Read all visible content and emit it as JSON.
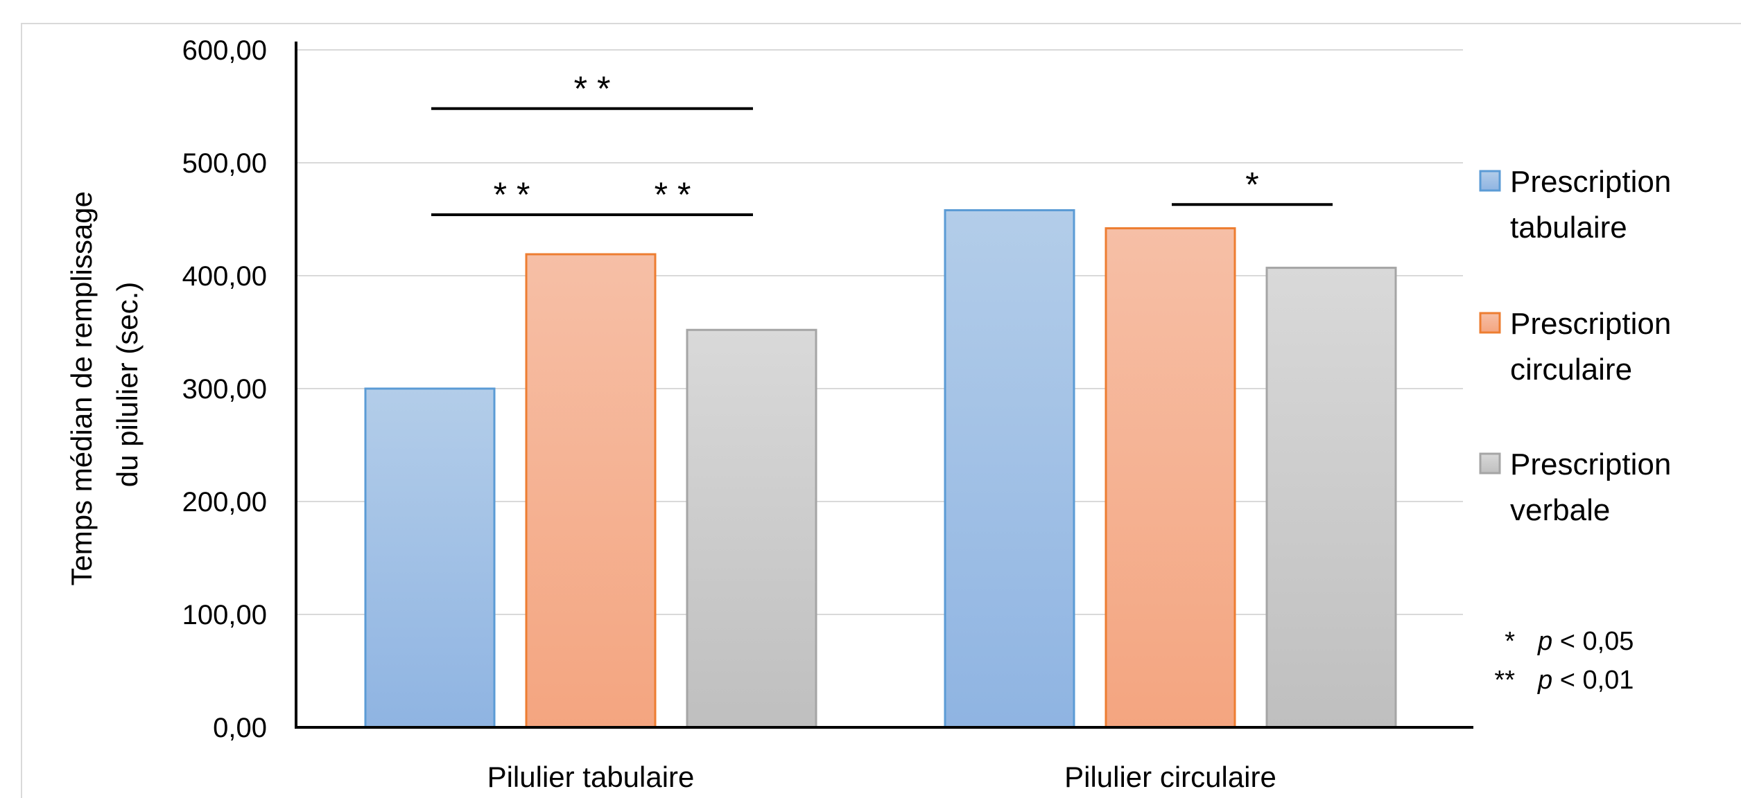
{
  "chart_data": {
    "type": "bar",
    "title": "",
    "ylabel": "Temps médian de remplissage du pilulier  (sec.)",
    "ylabel_lines": [
      "Temps médian de remplissage",
      "du pilulier  (sec.)"
    ],
    "xlabel": "",
    "categories": [
      "Pilulier tabulaire",
      "Pilulier circulaire"
    ],
    "ylim": [
      0,
      600
    ],
    "yticks": [
      0,
      100,
      200,
      300,
      400,
      500,
      600
    ],
    "ytick_labels": [
      "0,00",
      "100,00",
      "200,00",
      "300,00",
      "400,00",
      "500,00",
      "600,00"
    ],
    "grid": true,
    "legend_position": "right",
    "series": [
      {
        "name": "Prescription tabulaire",
        "name_lines": [
          "Prescription",
          "tabulaire"
        ],
        "values": [
          300,
          458
        ],
        "color_top": "#b3cde9",
        "color_bottom": "#8fb4e2",
        "stroke": "#5b9bd5"
      },
      {
        "name": "Prescription circulaire",
        "name_lines": [
          "Prescription",
          "circulaire"
        ],
        "values": [
          419,
          442
        ],
        "color_top": "#f6bfa6",
        "color_bottom": "#f4a580",
        "stroke": "#ed7d31"
      },
      {
        "name": "Prescription verbale",
        "name_lines": [
          "Prescription",
          "verbale"
        ],
        "values": [
          352,
          407
        ],
        "color_top": "#d9d9d9",
        "color_bottom": "#bfbfbf",
        "stroke": "#a5a5a5"
      }
    ],
    "significance": [
      {
        "category": 0,
        "from_series": 0,
        "to_series": 2,
        "y": 548,
        "label": "**"
      },
      {
        "category": 0,
        "from_series": 0,
        "to_series": 1,
        "y": 454,
        "label": "**"
      },
      {
        "category": 0,
        "from_series": 1,
        "to_series": 2,
        "y": 454,
        "label": "**"
      },
      {
        "category": 1,
        "from_series": 1,
        "to_series": 2,
        "y": 463,
        "label": "*"
      }
    ],
    "notes": [
      {
        "stars": "*",
        "p": "p",
        "text": " < 0,05"
      },
      {
        "stars": "**",
        "p": "p",
        "text": " < 0,01"
      }
    ]
  }
}
